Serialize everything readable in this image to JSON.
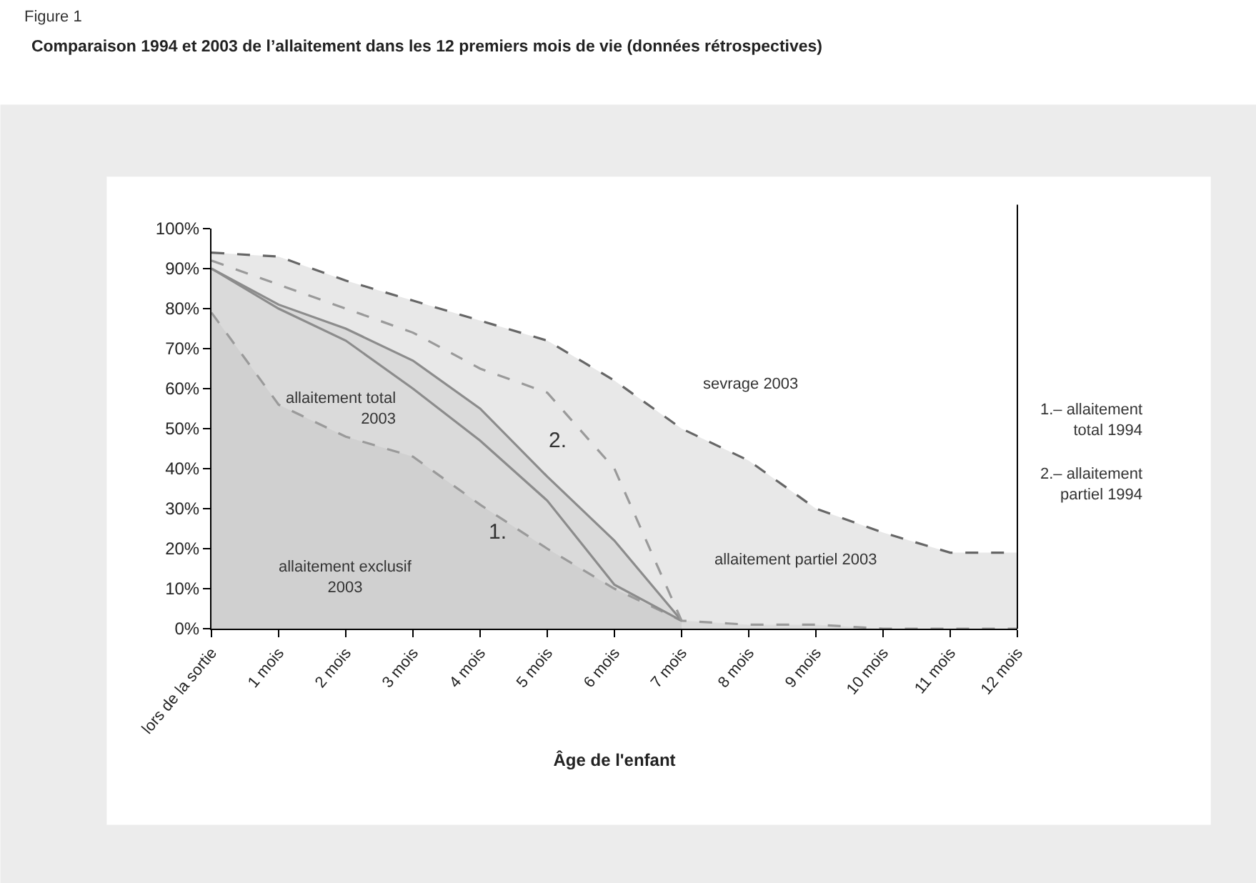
{
  "chart_data": {
    "type": "area",
    "title": "Comparaison 1994 et 2003 de l’allaitement dans les 12 premiers mois de vie (données rétrospectives)",
    "xlabel": "Âge de l'enfant",
    "categories": [
      "lors de la sortie",
      "1 mois",
      "2 mois",
      "3 mois",
      "4 mois",
      "5 mois",
      "6 mois",
      "7 mois",
      "8 mois",
      "9 mois",
      "10 mois",
      "11 mois",
      "12 mois"
    ],
    "series": [
      {
        "color": "#666666",
        "line_style": "dashed",
        "values": [
          94,
          93,
          87,
          82,
          77,
          72,
          62,
          50,
          42,
          30,
          24,
          19,
          19
        ]
      },
      {
        "color": "#8c8c8c",
        "line_style": "solid",
        "values": [
          90,
          81,
          75,
          67,
          55,
          38,
          22,
          2,
          null,
          null,
          null,
          null,
          null
        ]
      },
      {
        "color": "#9a9a9a",
        "line_style": "dashed",
        "values": [
          79,
          56,
          48,
          43,
          31,
          20,
          10,
          2,
          1,
          1,
          0,
          0,
          0
        ]
      },
      {
        "type": "line",
        "color": "#8c8c8c",
        "line_style": "solid",
        "values": [
          90,
          80,
          72,
          60,
          47,
          32,
          11,
          2,
          null,
          null,
          null,
          null,
          null
        ]
      },
      {
        "type": "line",
        "color": "#9a9a9a",
        "line_style": "dashed",
        "values": [
          92,
          86,
          80,
          74,
          65,
          59,
          40,
          2,
          null,
          null,
          null,
          null,
          null
        ]
      }
    ],
    "ylim": [
      0,
      100
    ],
    "yticks": [
      {
        "value": 0,
        "label": "0%"
      },
      {
        "value": 10,
        "label": "10%"
      },
      {
        "value": 20,
        "label": "20%"
      },
      {
        "value": 30,
        "label": "30%"
      },
      {
        "value": 40,
        "label": "40%"
      },
      {
        "value": 50,
        "label": "50%"
      },
      {
        "value": 60,
        "label": "60%"
      },
      {
        "value": 70,
        "label": "70%"
      },
      {
        "value": 80,
        "label": "80%"
      },
      {
        "value": 90,
        "label": "90%"
      },
      {
        "value": 100,
        "label": "100%"
      }
    ],
    "grid": false,
    "annotations": [
      "Figure 1",
      "1.– allaitement\ntotal 1994",
      "2.– allaitement\npartiel 1994",
      "sevrage 2003",
      "allaitement partiel 2003",
      "allaitement total\n2003",
      "allaitement exclusif\n2003",
      "1.",
      "2."
    ]
  }
}
